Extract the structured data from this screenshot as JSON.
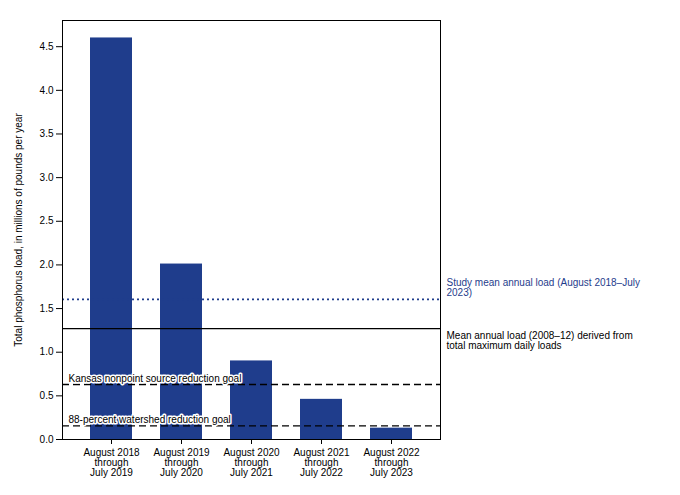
{
  "chart_data": {
    "type": "bar",
    "categories": [
      "August 2018\nthrough\nJuly 2019",
      "August 2019\nthrough\nJuly 2020",
      "August 2020\nthrough\nJuly 2021",
      "August 2021\nthrough\nJuly 2022",
      "August 2022\nthrough\nJuly 2023"
    ],
    "values": [
      4.6,
      2.01,
      0.9,
      0.46,
      0.13
    ],
    "color": "#1f3d8c",
    "ylim": [
      0,
      4.8
    ],
    "yticks": [
      {
        "value": 0,
        "label": "0.0"
      },
      0.5,
      {
        "value": 1.0,
        "label": "1.0"
      },
      1.5,
      {
        "value": 2.0,
        "label": "2.0"
      },
      2.5,
      {
        "value": 3.0,
        "label": "3.0"
      },
      3.5,
      {
        "value": 4.0,
        "label": "4.0"
      },
      4.5
    ],
    "ylabel": "Total phosphorus load, in millions of pounds per year",
    "grid": false,
    "reference_lines": [
      {
        "value": 1.605,
        "label": "Study mean annual load (August 2018–July 2023)",
        "color": "#1f3d8c",
        "line_style": "dotted"
      },
      {
        "value": 1.27,
        "label": "Mean annual load (2008–12) derived from total maximum daily loads",
        "color": "#000000",
        "line_style": "solid"
      },
      {
        "value": 0.63,
        "label": "Kansas nonpoint source reduction goal",
        "color": "#000000",
        "line_style": "dashed"
      },
      {
        "value": 0.155,
        "label": "88-percent watershed reduction goal",
        "color": "#000000",
        "line_style": "dashed"
      }
    ]
  }
}
